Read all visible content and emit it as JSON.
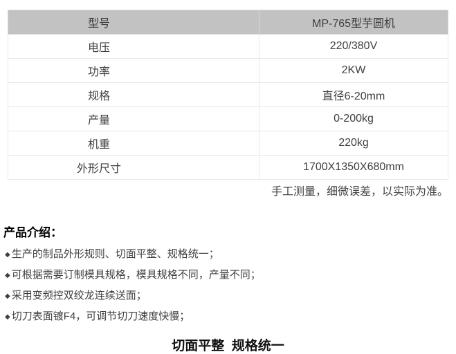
{
  "spec_table": {
    "rows": [
      {
        "label": "型号",
        "value": "MP-765型芋圆机",
        "header": true
      },
      {
        "label": "电压",
        "value": "220/380V",
        "header": false
      },
      {
        "label": "功率",
        "value": "2KW",
        "header": false
      },
      {
        "label": "规格",
        "value": "直径6-20mm",
        "header": false
      },
      {
        "label": "产量",
        "value": "0-200kg",
        "header": false
      },
      {
        "label": "机重",
        "value": "220kg",
        "header": false
      },
      {
        "label": "外形尺寸",
        "value": "1700X1350X680mm",
        "header": false
      }
    ],
    "note": "手工测量，细微误差，以实际为准。"
  },
  "intro": {
    "heading": "产品介绍：",
    "bullet_icon": "◆",
    "bullets": [
      "生产的制品外形规则、切面平整、规格统一；",
      "可根据需要订制模具规格，模具规格不同，产量不同；",
      "采用变频控双绞龙连续送面；",
      "切刀表面镀F4，可调节切刀速度快慢；"
    ]
  },
  "footer_title": "切面平整  规格统一",
  "colors": {
    "header_bg": "#c2c2c2",
    "row_border": "#e7e7e7",
    "body_text": "#414141",
    "heading_text": "#000000"
  }
}
